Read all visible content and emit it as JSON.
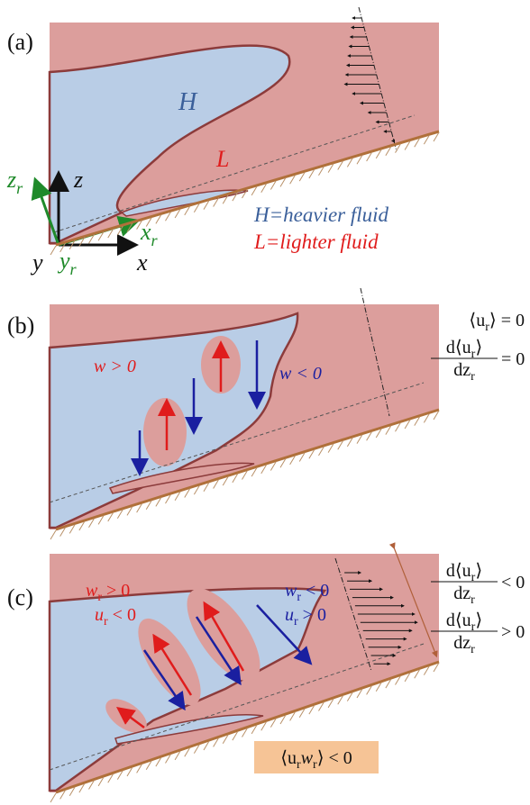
{
  "panel_a": {
    "label": "(a)",
    "heavy": "H",
    "light": "L",
    "axes": {
      "z": "z",
      "x": "x",
      "y": "y",
      "z_r": [
        "z",
        "r"
      ],
      "x_r": [
        "x",
        "r"
      ],
      "y_r": [
        "y",
        "r"
      ]
    },
    "legend": [
      [
        "H",
        "=heavier fluid"
      ],
      [
        "L",
        "=lighter fluid"
      ]
    ]
  },
  "panel_b": {
    "label": "(b)",
    "mean": [
      "⟨u",
      "r",
      "⟩ = 0"
    ],
    "gradient": {
      "numerator": [
        "d⟨u",
        "r",
        "⟩"
      ],
      "denominator": [
        "dz",
        "r"
      ],
      "relation": "= 0"
    },
    "left": [
      "w > 0"
    ],
    "right": [
      "w < 0"
    ]
  },
  "panel_c": {
    "label": "(c)",
    "gradient_upper": {
      "numerator": [
        "d⟨u",
        "r",
        "⟩"
      ],
      "denominator": [
        "dz",
        "r"
      ],
      "relation": "< 0"
    },
    "gradient_lower": {
      "numerator": [
        "d⟨u",
        "r",
        "⟩"
      ],
      "denominator": [
        "dz",
        "r"
      ],
      "relation": "> 0"
    },
    "left": [
      [
        "w",
        "r",
        " > 0"
      ],
      [
        "u",
        "r",
        " < 0"
      ]
    ],
    "right": [
      [
        "w",
        "r",
        " < 0"
      ],
      [
        "u",
        "r",
        " > 0"
      ]
    ],
    "correlation": [
      "⟨u",
      "r",
      "w",
      "r",
      "⟩ < 0"
    ]
  }
}
